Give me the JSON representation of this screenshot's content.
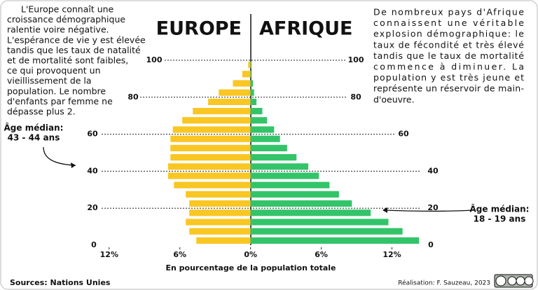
{
  "chart_data": {
    "type": "pyramid",
    "categories": [
      null,
      null,
      null,
      null,
      null,
      null,
      null,
      null,
      null,
      null,
      null,
      null,
      null,
      null,
      null,
      null,
      null,
      null,
      null,
      null
    ],
    "series": [
      {
        "name": "EUROPE",
        "color": "#f9c623",
        "values": [
          4.6,
          5.2,
          5.5,
          5.2,
          5.2,
          5.5,
          6.5,
          7.0,
          7.0,
          6.8,
          6.8,
          6.8,
          6.6,
          5.8,
          4.9,
          3.6,
          2.7,
          1.5,
          0.7,
          0.2
        ]
      },
      {
        "name": "AFRIQUE",
        "color": "#33c46a",
        "values": [
          14.3,
          12.9,
          11.7,
          10.2,
          8.6,
          7.5,
          6.7,
          5.8,
          4.9,
          3.9,
          3.1,
          2.5,
          2.0,
          1.4,
          1.0,
          0.5,
          0.3,
          0.2,
          0.1,
          0.05
        ]
      }
    ],
    "xlim": [
      -13,
      15
    ],
    "xticks": [
      {
        "value": -12,
        "label": "12%"
      },
      {
        "value": -6,
        "label": "6%"
      },
      {
        "value": 0,
        "label": "0%"
      },
      {
        "value": 6,
        "label": "6%"
      },
      {
        "value": 12,
        "label": "12%"
      }
    ],
    "ylim": [
      0,
      100
    ],
    "yticks": [
      0,
      20,
      40,
      60,
      80,
      100
    ],
    "x_label": "En pourcentage de la population totale",
    "left_text": [
      "L'Europe connaît une",
      "croissance démographique",
      "ralentie voire négative.",
      "L'espérance de vie y est élevée",
      "tandis que les taux de natalité",
      "et de mortalité sont faibles,",
      "ce qui provoquent un",
      "vieillissement de la",
      "population. Le nombre",
      "d'enfants par femme ne",
      " dépasse plus 2."
    ],
    "right_text": [
      "De nombreux pays d'Afrique",
      "connaissent une véritable",
      "explosion démographique: le",
      "taux de fécondité et très élevé",
      "tandis que le taux de mortalité",
      "commence à diminuer. La",
      "population y est très jeune et",
      "représente un réservoir de main-",
      "d'oeuvre."
    ],
    "annotations": {
      "europe_median_label": "Âge médian:",
      "europe_median": "43 - 44 ans",
      "africa_median_label": "Âge médian:",
      "africa_median": "18 - 19 ans"
    },
    "source": "Sources: Nations Unies",
    "credit": "Réalisation: F. Sauzeau, 2023"
  }
}
